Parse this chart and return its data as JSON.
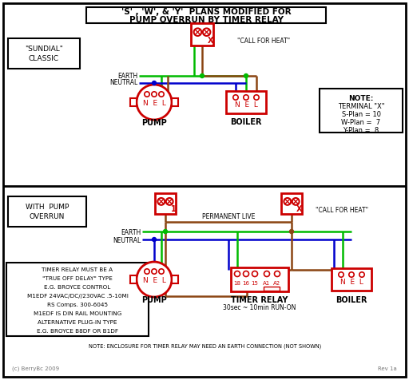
{
  "title_line1": "'S' , 'W', & 'Y'  PLANS MODIFIED FOR",
  "title_line2": "PUMP OVERRUN BY TIMER RELAY",
  "bg_color": "#ffffff",
  "border_color": "#000000",
  "red": "#cc0000",
  "green": "#00bb00",
  "blue": "#0000cc",
  "brown": "#8B4513",
  "gray": "#777777",
  "sundial_label1": "\"SUNDIAL\"",
  "sundial_label2": "CLASSIC",
  "with_pump1": "WITH  PUMP",
  "with_pump2": "OVERRUN",
  "note_title": "NOTE:",
  "note_lines": [
    "TERMINAL \"X\"",
    "S-Plan = 10",
    "W-Plan =  7",
    "Y-Plan =  8"
  ],
  "call_for_heat": "\"CALL FOR HEAT\"",
  "permanent_live": "PERMANENT LIVE",
  "earth_label": "EARTH",
  "neutral_label": "NEUTRAL",
  "pump_label": "PUMP",
  "boiler_label": "BOILER",
  "timer_relay_label": "TIMER RELAY",
  "timer_relay_sub": "30sec ~ 10min RUN-ON",
  "timer_note": "NOTE: ENCLOSURE FOR TIMER RELAY MAY NEED AN EARTH CONNECTION (NOT SHOWN)",
  "timer_box_lines": [
    "TIMER RELAY MUST BE A",
    "\"TRUE OFF DELAY\" TYPE",
    "E.G. BROYCE CONTROL",
    "M1EDF 24VAC/DC//230VAC .5-10MI",
    "RS Comps. 300-6045",
    "M1EDF IS DIN RAIL MOUNTING",
    "ALTERNATIVE PLUG-IN TYPE",
    "E.G. BROYCE B8DF OR B1DF"
  ],
  "watermark": "(c) BerryBc 2009",
  "rev": "Rev 1a"
}
